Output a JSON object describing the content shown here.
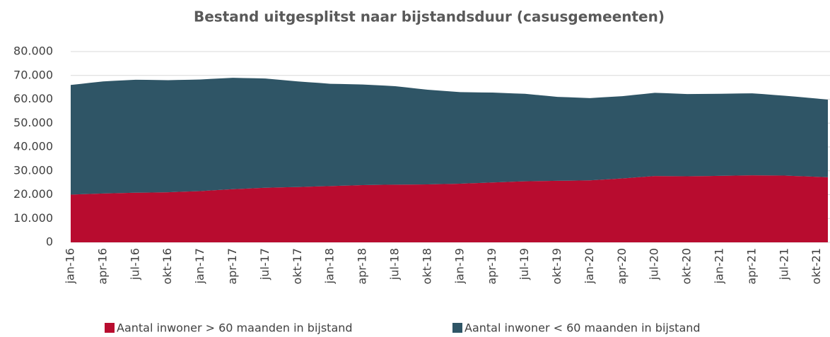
{
  "chart_data": {
    "type": "stacked-area",
    "title": "Bestand uitgesplitst naar bijstandsduur (casusgemeenten)",
    "categories": [
      "jan-16",
      null,
      null,
      "apr-16",
      null,
      null,
      "jul-16",
      null,
      null,
      "okt-16",
      null,
      null,
      "jan-17",
      null,
      null,
      "apr-17",
      null,
      null,
      "jul-17",
      null,
      null,
      "okt-17",
      null,
      null,
      "jan-18",
      null,
      null,
      "apr-18",
      null,
      null,
      "jul-18",
      null,
      null,
      "okt-18",
      null,
      null,
      "jan-19",
      null,
      null,
      "apr-19",
      null,
      null,
      "jul-19",
      null,
      null,
      "okt-19",
      null,
      null,
      "jan-20",
      null,
      null,
      "apr-20",
      null,
      null,
      "jul-20",
      null,
      null,
      "okt-20",
      null,
      null,
      "jan-21",
      null,
      null,
      "apr-21",
      null,
      null,
      "jul-21",
      null,
      null,
      "okt-21",
      null
    ],
    "series": [
      {
        "name": "Aantal inwoner > 60 maanden in bijstand",
        "color": "#b80c2f",
        "values": [
          20000,
          20170,
          20330,
          20500,
          20600,
          20700,
          20800,
          20870,
          20930,
          21000,
          21170,
          21330,
          21500,
          21770,
          22030,
          22300,
          22500,
          22700,
          22900,
          23000,
          23100,
          23200,
          23330,
          23470,
          23600,
          23730,
          23870,
          24000,
          24070,
          24130,
          24200,
          24230,
          24270,
          24300,
          24400,
          24500,
          24600,
          24770,
          24930,
          25100,
          25270,
          25430,
          25600,
          25670,
          25730,
          25800,
          25870,
          25930,
          26000,
          26270,
          26530,
          26800,
          27130,
          27470,
          27800,
          27770,
          27730,
          27700,
          27770,
          27830,
          27900,
          27970,
          28030,
          28100,
          28070,
          28030,
          28000,
          27830,
          27670,
          27500,
          27300
        ]
      },
      {
        "name": "Aantal inwoner < 60 maanden in bijstand",
        "color": "#2f5566",
        "values": [
          46000,
          46330,
          46670,
          47000,
          47130,
          47270,
          47400,
          47270,
          47130,
          47000,
          46930,
          46870,
          46800,
          46770,
          46730,
          46700,
          46400,
          46100,
          45800,
          45300,
          44800,
          44300,
          43830,
          43370,
          42900,
          42670,
          42430,
          42200,
          41900,
          41600,
          41300,
          40770,
          40230,
          39700,
          39270,
          38830,
          38400,
          38170,
          37930,
          37700,
          37370,
          37030,
          36700,
          36200,
          35700,
          35200,
          34970,
          34730,
          34500,
          34500,
          34500,
          34500,
          34630,
          34770,
          34900,
          34770,
          34630,
          34500,
          34470,
          34430,
          34400,
          34400,
          34400,
          34400,
          34100,
          33800,
          33500,
          33270,
          33030,
          32800,
          32500
        ]
      }
    ],
    "ylim": [
      0,
      80000
    ],
    "yticks": [
      0,
      {
        "value": 10000,
        "label": "10.000"
      },
      {
        "value": 20000,
        "label": "20.000"
      },
      {
        "value": 30000,
        "label": "30.000"
      },
      {
        "value": 40000,
        "label": "40.000"
      },
      {
        "value": 50000,
        "label": "50.000"
      },
      {
        "value": 60000,
        "label": "60.000"
      },
      {
        "value": 70000,
        "label": "70.000"
      },
      {
        "value": 80000,
        "label": "80.000"
      }
    ],
    "grid": true,
    "legend": "bottom"
  }
}
